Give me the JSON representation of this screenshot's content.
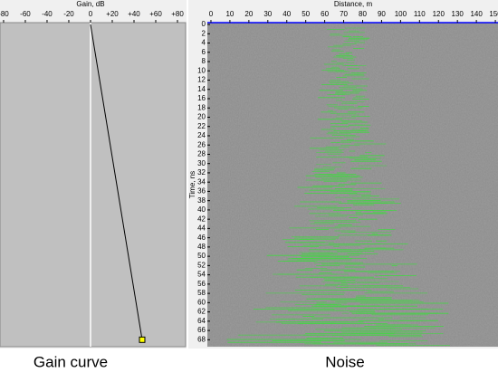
{
  "chart_data": [
    {
      "type": "line",
      "title": "Gain curve",
      "x_label": "Gain, dB",
      "x": [
        0,
        47.5
      ],
      "values": [
        0,
        68
      ],
      "color": "#000000",
      "marker_color": "#ffff00",
      "xlim": [
        -83.3,
        87.5
      ],
      "xticks": [
        -80,
        -60,
        -40,
        -20,
        0,
        {
          "value": 20,
          "label": "+20"
        },
        {
          "value": 40,
          "label": "+40"
        },
        {
          "value": 60,
          "label": "+60"
        },
        {
          "value": 80,
          "label": "+80"
        }
      ],
      "ylim": [
        -0.4,
        69.5
      ],
      "y_reversed": true,
      "zero_line": true
    },
    {
      "type": "image",
      "title": "Noise",
      "x_label": "Distance, m",
      "y_label": "Time, ns",
      "xlim": [
        -1.9,
        151.4
      ],
      "xticks": [
        0,
        10,
        20,
        30,
        40,
        50,
        60,
        70,
        80,
        90,
        100,
        110,
        120,
        130,
        140,
        150
      ],
      "ylim": [
        -0.4,
        69.5
      ],
      "yticks": [
        0,
        2,
        4,
        6,
        8,
        10,
        12,
        14,
        16,
        18,
        20,
        22,
        24,
        26,
        28,
        30,
        32,
        34,
        36,
        38,
        40,
        42,
        44,
        46,
        48,
        50,
        52,
        54,
        56,
        58,
        60,
        62,
        64,
        66,
        68
      ],
      "y_reversed": true,
      "color": "#3ddc3d"
    }
  ]
}
